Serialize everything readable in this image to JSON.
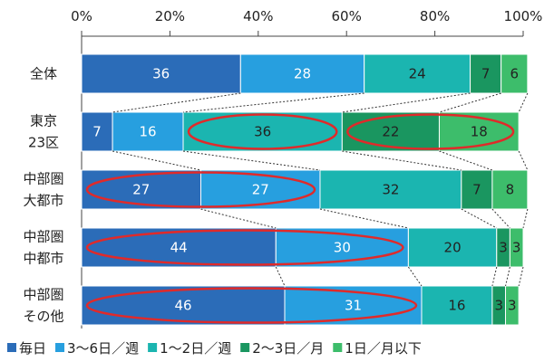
{
  "chart_data": {
    "type": "stacked-bar-horizontal",
    "categories": [
      [
        "全体"
      ],
      [
        "東京",
        "23区"
      ],
      [
        "中部圏",
        "大都市"
      ],
      [
        "中部圏",
        "中都市"
      ],
      [
        "中部圏",
        "その他"
      ]
    ],
    "series": [
      {
        "name": "毎日",
        "color": "#2b6cb8",
        "values": [
          36,
          7,
          27,
          44,
          46
        ]
      },
      {
        "name": "3〜6日／週",
        "color": "#279fdf",
        "values": [
          28,
          16,
          27,
          30,
          31
        ]
      },
      {
        "name": "1〜2日／週",
        "color": "#1bb5b0",
        "values": [
          24,
          36,
          32,
          20,
          16
        ]
      },
      {
        "name": "2〜3日／月",
        "color": "#1a9660",
        "values": [
          7,
          22,
          7,
          3,
          3
        ]
      },
      {
        "name": "1日／月以下",
        "color": "#3dbd6b",
        "values": [
          6,
          18,
          8,
          3,
          3
        ]
      }
    ],
    "xlim": [
      0,
      100
    ],
    "xticks": [
      {
        "value": 0,
        "label": "0%"
      },
      {
        "value": 20,
        "label": "20%"
      },
      {
        "value": 40,
        "label": "40%"
      },
      {
        "value": 60,
        "label": "60%"
      },
      {
        "value": 80,
        "label": "80%"
      },
      {
        "value": 100,
        "label": "100%"
      }
    ]
  }
}
